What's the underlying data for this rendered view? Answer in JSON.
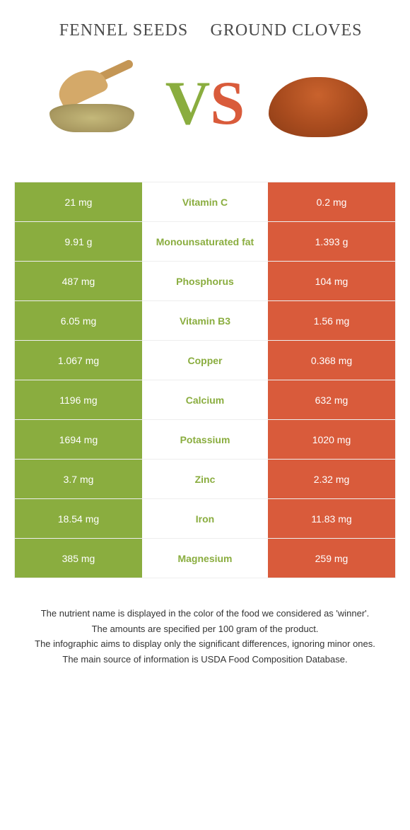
{
  "titles": {
    "left": "Fennel seeds",
    "right": "Ground cloves"
  },
  "vs": {
    "v": "V",
    "s": "S"
  },
  "colors": {
    "green": "#8aad3f",
    "orange": "#d95b3b"
  },
  "rows": [
    {
      "left": "21 mg",
      "label": "Vitamin C",
      "right": "0.2 mg",
      "winner": "left"
    },
    {
      "left": "9.91 g",
      "label": "Monounsaturated fat",
      "right": "1.393 g",
      "winner": "left"
    },
    {
      "left": "487 mg",
      "label": "Phosphorus",
      "right": "104 mg",
      "winner": "left"
    },
    {
      "left": "6.05 mg",
      "label": "Vitamin B3",
      "right": "1.56 mg",
      "winner": "left"
    },
    {
      "left": "1.067 mg",
      "label": "Copper",
      "right": "0.368 mg",
      "winner": "left"
    },
    {
      "left": "1196 mg",
      "label": "Calcium",
      "right": "632 mg",
      "winner": "left"
    },
    {
      "left": "1694 mg",
      "label": "Potassium",
      "right": "1020 mg",
      "winner": "left"
    },
    {
      "left": "3.7 mg",
      "label": "Zinc",
      "right": "2.32 mg",
      "winner": "left"
    },
    {
      "left": "18.54 mg",
      "label": "Iron",
      "right": "11.83 mg",
      "winner": "left"
    },
    {
      "left": "385 mg",
      "label": "Magnesium",
      "right": "259 mg",
      "winner": "left"
    }
  ],
  "notes": [
    "The nutrient name is displayed in the color of the food we considered as 'winner'.",
    "The amounts are specified per 100 gram of the product.",
    "The infographic aims to display only the significant differences, ignoring minor ones.",
    "The main source of information is USDA Food Composition Database."
  ]
}
